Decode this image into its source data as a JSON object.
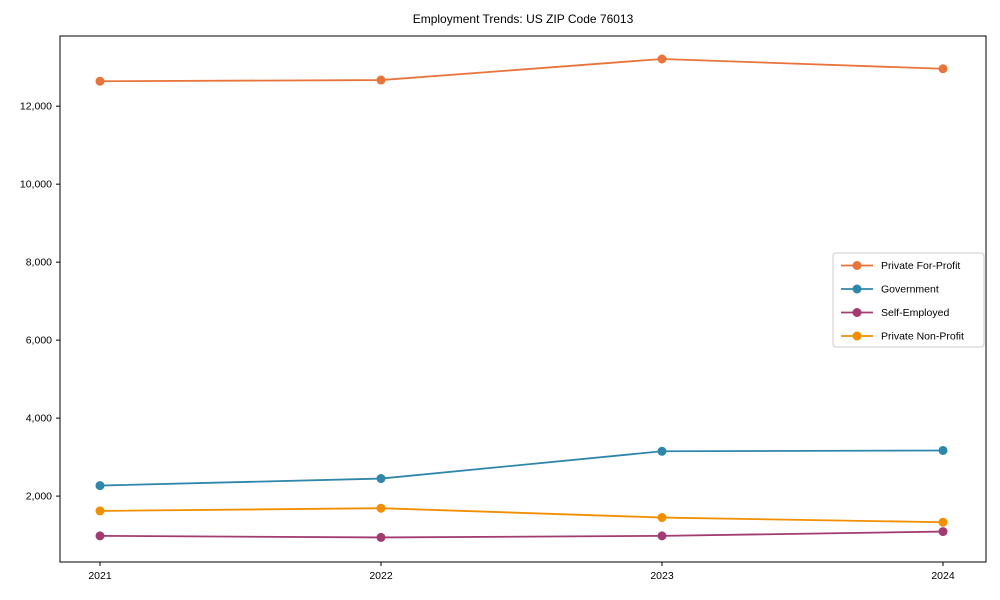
{
  "chart_data": {
    "type": "line",
    "title": "Employment Trends: US ZIP Code 76013",
    "xlabel": "",
    "ylabel": "",
    "x": [
      2021,
      2022,
      2023,
      2024
    ],
    "x_tick_labels": [
      "2021",
      "2022",
      "2023",
      "2024"
    ],
    "series": [
      {
        "name": "Private For-Profit",
        "color": "#E8743B",
        "values": [
          12640,
          12670,
          13210,
          12960
        ]
      },
      {
        "name": "Government",
        "color": "#2E86AB",
        "values": [
          2270,
          2450,
          3150,
          3170
        ]
      },
      {
        "name": "Self-Employed",
        "color": "#A23B72",
        "values": [
          980,
          940,
          980,
          1090
        ]
      },
      {
        "name": "Private Non-Profit",
        "color": "#F18F01",
        "values": [
          1620,
          1690,
          1450,
          1330
        ]
      }
    ],
    "y_ticks": [
      2000,
      4000,
      6000,
      8000,
      10000,
      12000
    ],
    "y_tick_labels": [
      "2,000",
      "4,000",
      "6,000",
      "8,000",
      "10,000",
      "12,000"
    ],
    "ylim": [
      310,
      13800
    ],
    "grid": false,
    "legend_position": "center right",
    "marker": "circle",
    "axis_color": "#000000",
    "legend_border_color": "#cccccc",
    "background_color": "#ffffff"
  }
}
